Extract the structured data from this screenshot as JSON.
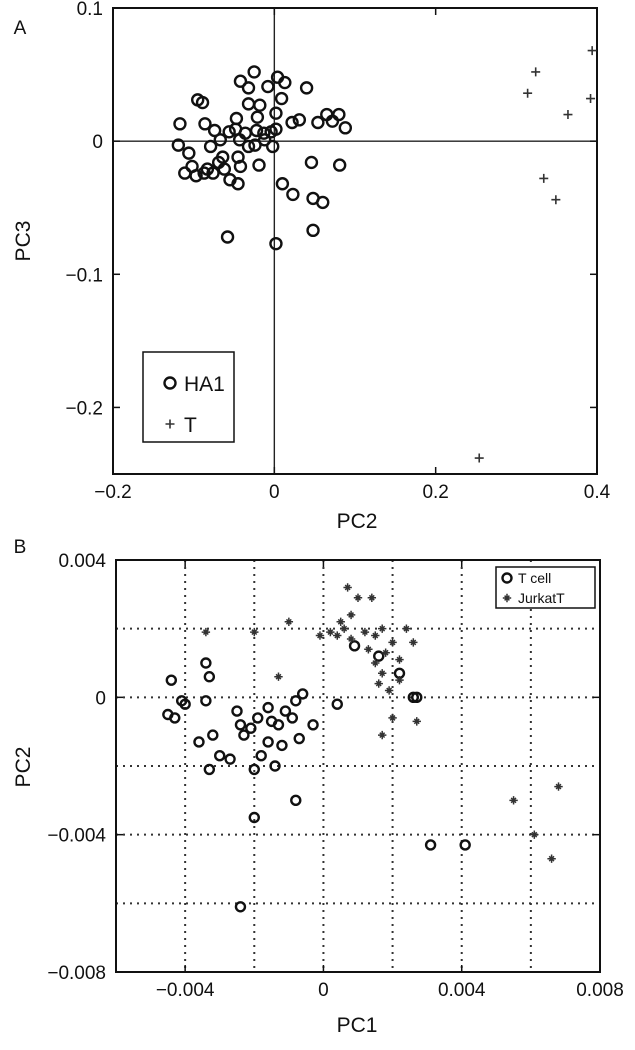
{
  "chart_data": [
    {
      "type": "scatter",
      "panel_label": "A",
      "title": "",
      "xlabel": "PC2",
      "ylabel": "PC3",
      "xlim": [
        -0.2,
        0.4
      ],
      "ylim": [
        -0.25,
        0.1
      ],
      "xticks": [
        -0.2,
        0,
        0.2,
        0.4
      ],
      "xtick_labels": [
        "−0.2",
        "0",
        "0.2",
        "0.4"
      ],
      "yticks": [
        0.1,
        0,
        -0.1,
        -0.2
      ],
      "ytick_labels": [
        "0.1",
        "0",
        "−0.1",
        "−0.2"
      ],
      "reference_lines": {
        "x": 0,
        "y": 0
      },
      "grid": false,
      "legend_position": "bottom-left",
      "series": [
        {
          "name": "HA1",
          "marker": "circle",
          "points": [
            [
              -0.025,
              0.052
            ],
            [
              -0.008,
              0.041
            ],
            [
              0.004,
              0.048
            ],
            [
              0.013,
              0.044
            ],
            [
              -0.042,
              0.045
            ],
            [
              -0.032,
              0.04
            ],
            [
              0.009,
              0.032
            ],
            [
              0.04,
              0.04
            ],
            [
              -0.018,
              0.027
            ],
            [
              0.002,
              0.021
            ],
            [
              -0.095,
              0.031
            ],
            [
              -0.089,
              0.029
            ],
            [
              -0.032,
              0.028
            ],
            [
              -0.021,
              0.018
            ],
            [
              0.031,
              0.016
            ],
            [
              0.022,
              0.014
            ],
            [
              -0.047,
              0.017
            ],
            [
              0.054,
              0.014
            ],
            [
              0.065,
              0.02
            ],
            [
              0.088,
              0.01
            ],
            [
              0.072,
              0.015
            ],
            [
              0.08,
              0.02
            ],
            [
              -0.117,
              0.013
            ],
            [
              -0.086,
              0.013
            ],
            [
              -0.074,
              0.008
            ],
            [
              -0.056,
              0.007
            ],
            [
              -0.048,
              0.009
            ],
            [
              -0.036,
              0.006
            ],
            [
              -0.022,
              0.008
            ],
            [
              -0.013,
              0.006
            ],
            [
              -0.004,
              0.007
            ],
            [
              0.002,
              0.009
            ],
            [
              -0.067,
              0.001
            ],
            [
              -0.043,
              0.001
            ],
            [
              -0.032,
              -0.004
            ],
            [
              -0.024,
              -0.003
            ],
            [
              -0.012,
              0.001
            ],
            [
              -0.002,
              -0.004
            ],
            [
              -0.079,
              -0.004
            ],
            [
              -0.119,
              -0.003
            ],
            [
              -0.106,
              -0.009
            ],
            [
              -0.045,
              -0.012
            ],
            [
              -0.069,
              -0.016
            ],
            [
              -0.102,
              -0.019
            ],
            [
              -0.083,
              -0.021
            ],
            [
              -0.062,
              -0.021
            ],
            [
              -0.042,
              -0.019
            ],
            [
              -0.019,
              -0.018
            ],
            [
              0.046,
              -0.016
            ],
            [
              -0.064,
              -0.012
            ],
            [
              0.081,
              -0.018
            ],
            [
              -0.111,
              -0.024
            ],
            [
              -0.097,
              -0.026
            ],
            [
              -0.087,
              -0.024
            ],
            [
              -0.076,
              -0.024
            ],
            [
              -0.055,
              -0.029
            ],
            [
              -0.045,
              -0.032
            ],
            [
              0.01,
              -0.032
            ],
            [
              0.023,
              -0.04
            ],
            [
              0.048,
              -0.043
            ],
            [
              0.06,
              -0.046
            ],
            [
              -0.058,
              -0.072
            ],
            [
              0.002,
              -0.077
            ],
            [
              0.048,
              -0.067
            ]
          ]
        },
        {
          "name": "T",
          "marker": "plus",
          "points": [
            [
              0.394,
              0.068
            ],
            [
              0.324,
              0.052
            ],
            [
              0.392,
              0.032
            ],
            [
              0.314,
              0.036
            ],
            [
              0.364,
              0.02
            ],
            [
              0.334,
              -0.028
            ],
            [
              0.349,
              -0.044
            ],
            [
              0.254,
              -0.238
            ]
          ]
        }
      ]
    },
    {
      "type": "scatter",
      "panel_label": "B",
      "title": "",
      "xlabel": "PC1",
      "ylabel": "PC2",
      "xlim": [
        -0.006,
        0.008
      ],
      "ylim": [
        -0.008,
        0.004
      ],
      "xticks": [
        -0.004,
        0,
        0.004,
        0.008
      ],
      "xtick_labels": [
        "−0.004",
        "0",
        "0.004",
        "0.008"
      ],
      "yticks": [
        0.004,
        0,
        -0.004,
        -0.008
      ],
      "ytick_labels": [
        "0.004",
        "0",
        "−0.004",
        "−0.008"
      ],
      "grid": true,
      "grid_x": [
        -0.004,
        -0.002,
        0,
        0.002,
        0.004,
        0.006
      ],
      "grid_y": [
        0.002,
        0,
        -0.002,
        -0.004,
        -0.006
      ],
      "legend_position": "top-right",
      "series": [
        {
          "name": "T cell",
          "marker": "circle",
          "points": [
            [
              -0.0044,
              0.0005
            ],
            [
              -0.0041,
              -0.0001
            ],
            [
              -0.0045,
              -0.0005
            ],
            [
              -0.004,
              -0.0002
            ],
            [
              -0.0043,
              -0.0006
            ],
            [
              -0.0034,
              0.001
            ],
            [
              -0.0033,
              0.0006
            ],
            [
              -0.0034,
              -0.0001
            ],
            [
              -0.0032,
              -0.0011
            ],
            [
              -0.0036,
              -0.0013
            ],
            [
              -0.003,
              -0.0017
            ],
            [
              -0.0033,
              -0.0021
            ],
            [
              -0.0027,
              -0.0018
            ],
            [
              -0.0025,
              -0.0004
            ],
            [
              -0.0024,
              -0.0008
            ],
            [
              -0.0023,
              -0.0011
            ],
            [
              -0.0021,
              -0.0009
            ],
            [
              -0.0019,
              -0.0006
            ],
            [
              -0.0016,
              -0.0003
            ],
            [
              -0.0015,
              -0.0007
            ],
            [
              -0.0016,
              -0.0013
            ],
            [
              -0.0013,
              -0.0008
            ],
            [
              -0.0011,
              -0.0004
            ],
            [
              -0.0008,
              -0.0001
            ],
            [
              -0.0006,
              0.0001
            ],
            [
              -0.0009,
              -0.0006
            ],
            [
              -0.0012,
              -0.0014
            ],
            [
              -0.0014,
              -0.002
            ],
            [
              -0.0018,
              -0.0017
            ],
            [
              -0.002,
              -0.0021
            ],
            [
              -0.0007,
              -0.0012
            ],
            [
              -0.0003,
              -0.0008
            ],
            [
              0.0004,
              -0.0002
            ],
            [
              0.0009,
              0.0015
            ],
            [
              0.0016,
              0.0012
            ],
            [
              0.0022,
              0.0007
            ],
            [
              0.0026,
              0.0
            ],
            [
              0.0027,
              0.0
            ],
            [
              -0.0008,
              -0.003
            ],
            [
              -0.002,
              -0.0035
            ],
            [
              -0.0024,
              -0.0061
            ],
            [
              0.0031,
              -0.0043
            ],
            [
              0.0041,
              -0.0043
            ]
          ]
        },
        {
          "name": "JurkatT",
          "marker": "star",
          "points": [
            [
              -0.0034,
              0.0019
            ],
            [
              -0.002,
              0.0019
            ],
            [
              -0.001,
              0.0022
            ],
            [
              -0.0013,
              0.0006
            ],
            [
              -0.0001,
              0.0018
            ],
            [
              0.0002,
              0.0019
            ],
            [
              0.0004,
              0.0018
            ],
            [
              0.0006,
              0.002
            ],
            [
              0.0008,
              0.0017
            ],
            [
              0.0005,
              0.0022
            ],
            [
              0.0008,
              0.0024
            ],
            [
              0.0007,
              0.0032
            ],
            [
              0.001,
              0.0029
            ],
            [
              0.0014,
              0.0029
            ],
            [
              0.0012,
              0.0019
            ],
            [
              0.0015,
              0.0018
            ],
            [
              0.0017,
              0.002
            ],
            [
              0.0013,
              0.0014
            ],
            [
              0.0015,
              0.001
            ],
            [
              0.0018,
              0.0013
            ],
            [
              0.002,
              0.0016
            ],
            [
              0.0017,
              0.0007
            ],
            [
              0.0016,
              0.0004
            ],
            [
              0.0019,
              0.0002
            ],
            [
              0.0022,
              0.0005
            ],
            [
              0.0022,
              0.0011
            ],
            [
              0.0024,
              0.002
            ],
            [
              0.0026,
              0.0016
            ],
            [
              0.002,
              -0.0006
            ],
            [
              0.0027,
              -0.0007
            ],
            [
              0.0017,
              -0.0011
            ],
            [
              0.0055,
              -0.003
            ],
            [
              0.0061,
              -0.004
            ],
            [
              0.0066,
              -0.0047
            ],
            [
              0.0068,
              -0.0026
            ]
          ]
        }
      ]
    }
  ]
}
